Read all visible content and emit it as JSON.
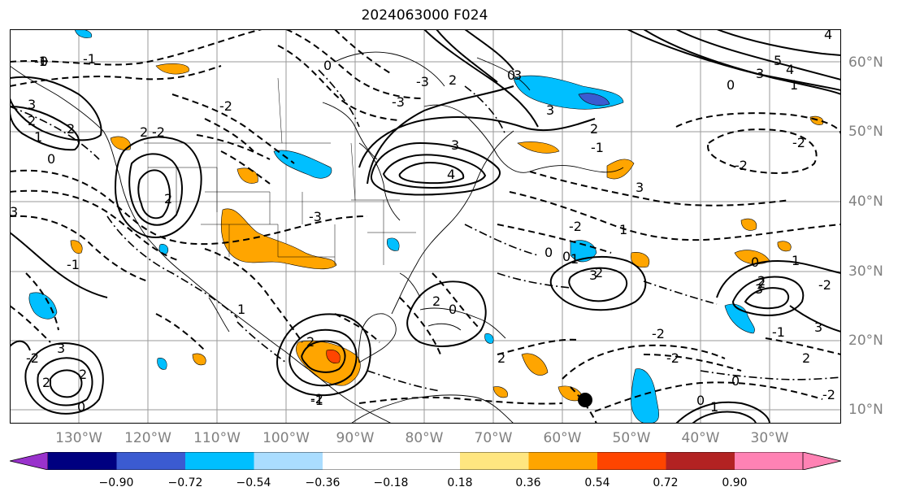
{
  "title": "2024063000 F024",
  "lon_labels": [
    "130°W",
    "120°W",
    "110°W",
    "100°W",
    "90°W",
    "80°W",
    "70°W",
    "60°W",
    "50°W",
    "40°W",
    "30°W"
  ],
  "lat_labels": [
    "60°N",
    "50°N",
    "40°N",
    "30°N",
    "20°N",
    "10°N"
  ],
  "colorbar": {
    "ticks": [
      "−0.90",
      "−0.72",
      "−0.54",
      "−0.36",
      "−0.18",
      "0.18",
      "0.36",
      "0.54",
      "0.72",
      "0.90"
    ],
    "colors": [
      "#9932cc",
      "#000080",
      "#3b5bd1",
      "#00bfff",
      "#aaddff",
      "#ffffff",
      "#ffe680",
      "#ffa500",
      "#ff4500",
      "#b22222",
      "#ff82b4"
    ]
  },
  "contour_labels": [
    "-1",
    "0",
    "-1",
    "3",
    "2",
    "2",
    "1",
    "0",
    "2",
    "-2",
    "2",
    "3",
    "-3",
    "4",
    "3",
    "-3",
    "2",
    "3",
    "-3",
    "0",
    "4",
    "5",
    "4",
    "3",
    "0",
    "1",
    "0",
    "3",
    "2",
    "-1",
    "3",
    "0",
    "3",
    "1",
    "0",
    "2",
    "1",
    "-2",
    "-2",
    "-2",
    "-2",
    "0",
    "2",
    "-1",
    "3",
    "1",
    "2",
    "3",
    "2",
    "0",
    "-2",
    "-2",
    "-2",
    "0",
    "1",
    "2",
    "2",
    "-2",
    "-1",
    "2",
    "0",
    "3",
    "-2",
    "-1",
    "2",
    "1",
    "-2",
    "2",
    "0"
  ]
}
